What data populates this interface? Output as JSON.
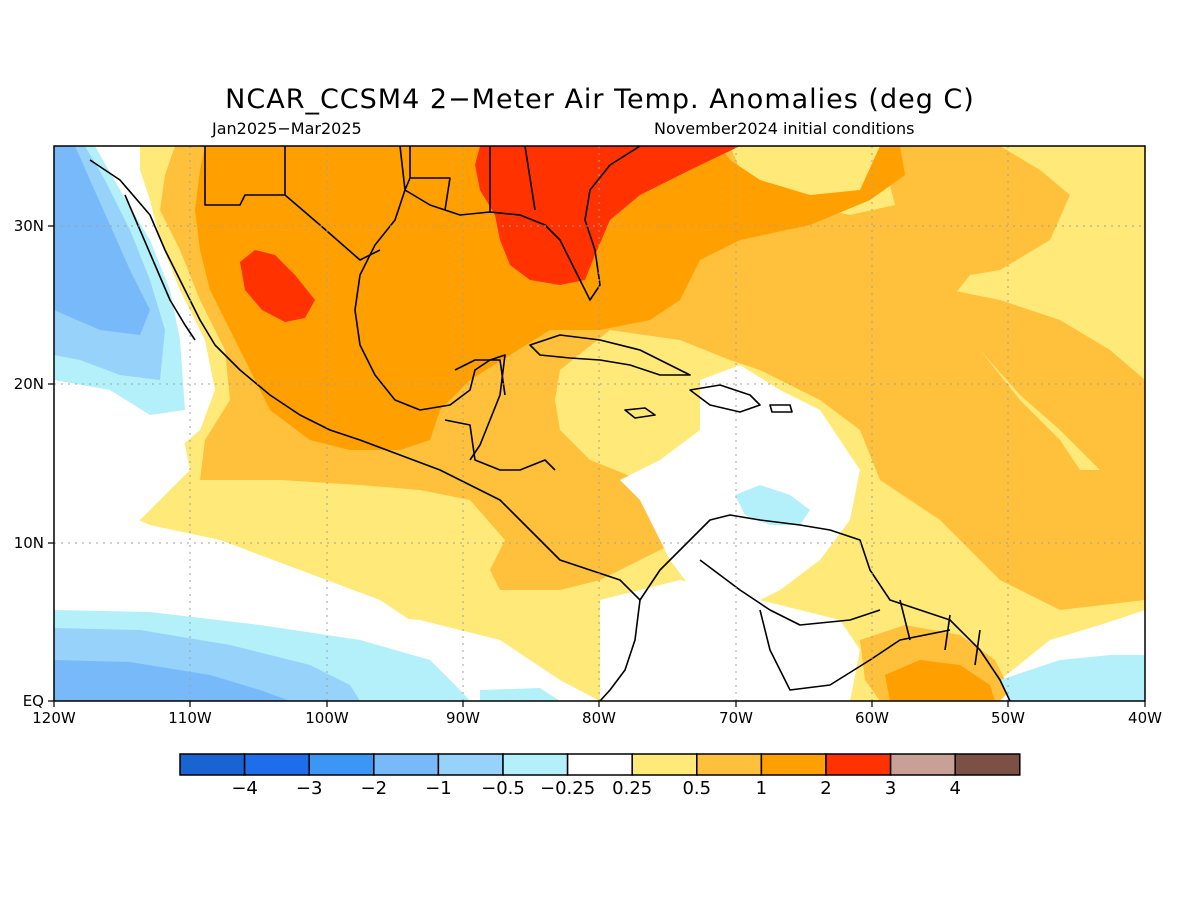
{
  "title": "NCAR_CCSM4 2−Meter Air Temp. Anomalies (deg C)",
  "subtitle_left": "Jan2025−Mar2025",
  "subtitle_right": "November2024 initial conditions",
  "map": {
    "lon_range": [
      -120,
      -40
    ],
    "lat_range": [
      0,
      35
    ],
    "x_ticks": [
      "120W",
      "110W",
      "100W",
      "90W",
      "80W",
      "70W",
      "60W",
      "50W",
      "40W"
    ],
    "y_ticks": [
      "EQ",
      "10N",
      "20N",
      "30N"
    ],
    "grid": true
  },
  "colorbar": {
    "colors": [
      "#1964d2",
      "#1e6eeb",
      "#3c96f5",
      "#78b9fa",
      "#96d2fa",
      "#b4f0fa",
      "#ffffff",
      "#ffe978",
      "#ffc03c",
      "#ffa000",
      "#ff3200",
      "#c8a096",
      "#7d5046"
    ],
    "labels": [
      "−4",
      "−3",
      "−2",
      "−1",
      "−0.5",
      "−0.25",
      "0.25",
      "0.5",
      "1",
      "2",
      "3",
      "4"
    ]
  }
}
